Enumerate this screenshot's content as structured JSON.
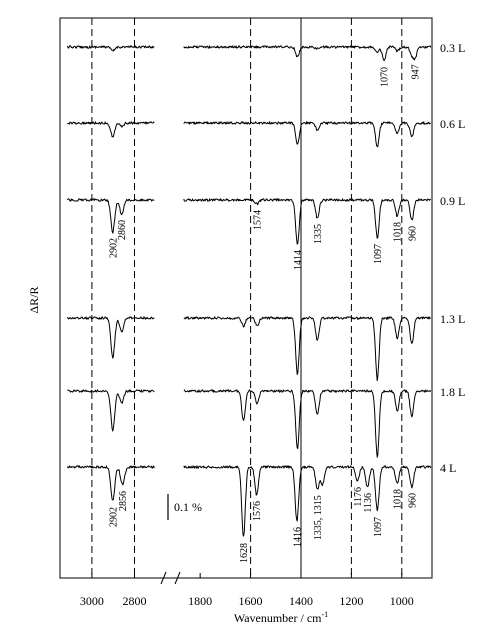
{
  "chart_data": {
    "type": "line",
    "ylabel": "ΔR/R",
    "xlabel": "Wavenumber / cm",
    "xlabel_superscript": "-1",
    "x_axis_break": true,
    "x_ranges": [
      [
        3150,
        2680
      ],
      [
        1880,
        880
      ]
    ],
    "xticks": [
      {
        "value": 3000,
        "label": "3000"
      },
      {
        "value": 2800,
        "label": "2800"
      },
      {
        "value": 1800,
        "label": "1800"
      },
      {
        "value": 1600,
        "label": "1600"
      },
      {
        "value": 1400,
        "label": "1400"
      },
      {
        "value": 1200,
        "label": "1200"
      },
      {
        "value": 1000,
        "label": "1000"
      }
    ],
    "vertical_lines": [
      {
        "x": 3000,
        "style": "dashed"
      },
      {
        "x": 2800,
        "style": "dashed"
      },
      {
        "x": 1600,
        "style": "dashed"
      },
      {
        "x": 1400,
        "style": "solid"
      },
      {
        "x": 1200,
        "style": "dashed"
      },
      {
        "x": 1000,
        "style": "dashed"
      }
    ],
    "scale_bar": {
      "label": "0.1 %",
      "value": 0.1
    },
    "series": [
      {
        "name": "0.3 L",
        "peaks": [
          [
            2902,
            4
          ],
          [
            1414,
            10
          ],
          [
            1335,
            2
          ],
          [
            1097,
            6
          ],
          [
            1070,
            14
          ],
          [
            1018,
            4
          ],
          [
            960,
            8
          ],
          [
            947,
            10
          ]
        ],
        "labels": [
          {
            "x": 1070,
            "text": "1070"
          },
          {
            "x": 947,
            "text": "947"
          }
        ]
      },
      {
        "name": "0.6 L",
        "peaks": [
          [
            2902,
            14
          ],
          [
            2860,
            3
          ],
          [
            1414,
            22
          ],
          [
            1335,
            7
          ],
          [
            1097,
            24
          ],
          [
            1018,
            10
          ],
          [
            960,
            14
          ]
        ],
        "labels": []
      },
      {
        "name": "0.9 L",
        "peaks": [
          [
            2902,
            32
          ],
          [
            2860,
            14
          ],
          [
            1574,
            4
          ],
          [
            1414,
            44
          ],
          [
            1335,
            18
          ],
          [
            1097,
            38
          ],
          [
            1018,
            16
          ],
          [
            960,
            20
          ]
        ],
        "labels": [
          {
            "x": 2902,
            "text": "2902"
          },
          {
            "x": 2860,
            "text": "2860"
          },
          {
            "x": 1574,
            "text": "1574"
          },
          {
            "x": 1414,
            "text": "1414"
          },
          {
            "x": 1335,
            "text": "1335"
          },
          {
            "x": 1097,
            "text": "1097"
          },
          {
            "x": 1018,
            "text": "1018"
          },
          {
            "x": 960,
            "text": "960"
          }
        ]
      },
      {
        "name": "1.3 L",
        "peaks": [
          [
            2902,
            40
          ],
          [
            2860,
            14
          ],
          [
            1628,
            8
          ],
          [
            1574,
            8
          ],
          [
            1414,
            56
          ],
          [
            1335,
            22
          ],
          [
            1097,
            62
          ],
          [
            1018,
            20
          ],
          [
            960,
            26
          ]
        ],
        "labels": []
      },
      {
        "name": "1.8 L",
        "peaks": [
          [
            2902,
            40
          ],
          [
            2860,
            12
          ],
          [
            1628,
            30
          ],
          [
            1574,
            12
          ],
          [
            1414,
            58
          ],
          [
            1335,
            24
          ],
          [
            1097,
            66
          ],
          [
            1018,
            20
          ],
          [
            960,
            26
          ]
        ],
        "labels": []
      },
      {
        "name": "4 L",
        "peaks": [
          [
            2902,
            34
          ],
          [
            2856,
            18
          ],
          [
            1628,
            70
          ],
          [
            1576,
            28
          ],
          [
            1416,
            54
          ],
          [
            1335,
            22
          ],
          [
            1315,
            18
          ],
          [
            1176,
            14
          ],
          [
            1136,
            20
          ],
          [
            1097,
            44
          ],
          [
            1018,
            16
          ],
          [
            960,
            20
          ]
        ],
        "labels": [
          {
            "x": 2902,
            "text": "2902"
          },
          {
            "x": 2856,
            "text": "2856"
          },
          {
            "x": 1628,
            "text": "1628"
          },
          {
            "x": 1576,
            "text": "1576"
          },
          {
            "x": 1416,
            "text": "1416"
          },
          {
            "x": 1335,
            "text": "1335, 1315"
          },
          {
            "x": 1176,
            "text": "1176"
          },
          {
            "x": 1136,
            "text": "1136"
          },
          {
            "x": 1097,
            "text": "1097"
          },
          {
            "x": 1018,
            "text": "1018"
          },
          {
            "x": 960,
            "text": "960"
          }
        ]
      }
    ]
  }
}
